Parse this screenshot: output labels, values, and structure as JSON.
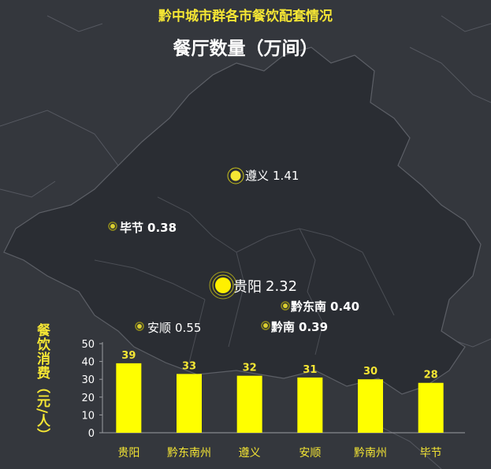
{
  "title": "黔中城市群各市餐饮配套情况",
  "subtitle": "餐厅数量（万间）",
  "map_points": [
    {
      "name": "遵义",
      "value": "1.41",
      "value_num": 1.41
    },
    {
      "name": "毕节",
      "value": "0.38",
      "value_num": 0.38
    },
    {
      "name": "贵阳",
      "value": "2.32",
      "value_num": 2.32
    },
    {
      "name": "黔东南",
      "value": "0.40",
      "value_num": 0.4
    },
    {
      "name": "安顺",
      "value": "0.55",
      "value_num": 0.55
    },
    {
      "name": "黔南",
      "value": "0.39",
      "value_num": 0.39
    }
  ],
  "colors": {
    "background": "#34373d",
    "region_fill": "#2a2d33",
    "region_border": "#5c5f66",
    "accent": "#f5e634",
    "bar": "#ffff00",
    "text": "#ffffff"
  },
  "chart_data": {
    "type": "bar",
    "ylabel": "餐饮消费（元/人）",
    "categories": [
      "贵阳",
      "黔东南州",
      "遵义",
      "安顺",
      "黔南州",
      "毕节"
    ],
    "values": [
      39,
      33,
      32,
      31,
      30,
      28
    ],
    "ylim": [
      0,
      50
    ],
    "yticks": [
      0,
      10,
      20,
      30,
      40,
      50
    ],
    "grid": false
  }
}
